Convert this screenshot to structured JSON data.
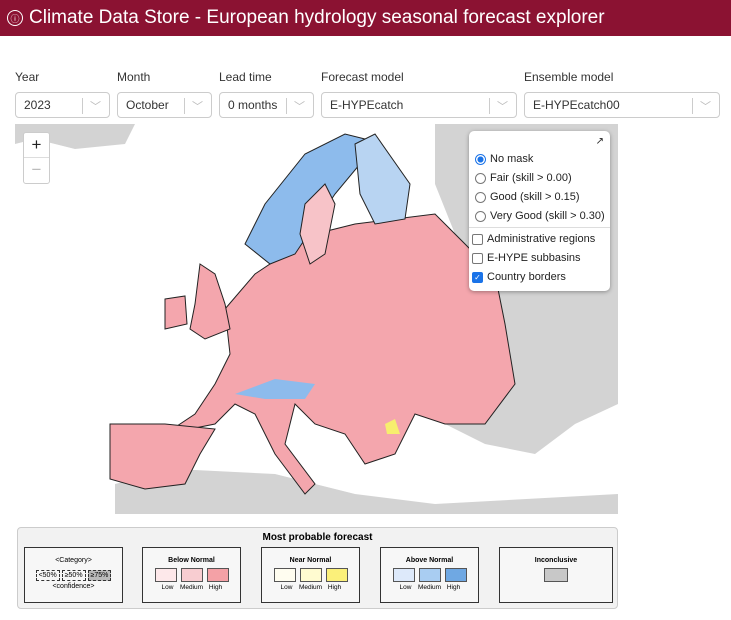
{
  "header": {
    "title": "Climate Data Store - European hydrology seasonal forecast explorer",
    "logo_icon": "cds-logo-icon"
  },
  "controls": [
    {
      "label": "Year",
      "value": "2023"
    },
    {
      "label": "Month",
      "value": "October"
    },
    {
      "label": "Lead time",
      "value": "0 months"
    },
    {
      "label": "Forecast model",
      "value": "E-HYPEcatch"
    },
    {
      "label": "Ensemble model",
      "value": "E-HYPEcatch00"
    }
  ],
  "map": {
    "zoom_in": "+",
    "zoom_out": "−",
    "layers": {
      "expand_icon": "↗",
      "masks": [
        {
          "label": "No mask",
          "selected": true
        },
        {
          "label": "Fair (skill > 0.00)",
          "selected": false
        },
        {
          "label": "Good (skill > 0.15)",
          "selected": false
        },
        {
          "label": "Very Good (skill > 0.30)",
          "selected": false
        }
      ],
      "overlays": [
        {
          "label": "Administrative regions",
          "checked": false
        },
        {
          "label": "E-HYPE subbasins",
          "checked": false
        },
        {
          "label": "Country borders",
          "checked": true
        }
      ]
    },
    "colors": {
      "land_outside": "#d3d3d3",
      "below_high": "#f4a3a8",
      "above": "#7fb3ea",
      "near_high": "#f7ee6e"
    }
  },
  "legend": {
    "title": "Most probable forecast",
    "key": {
      "category": "<Category>",
      "confidence": "<confidence>",
      "levels": [
        "<50%",
        "≥50%",
        "≥75%"
      ]
    },
    "groups": [
      {
        "name": "Below Normal",
        "colors": [
          "#fde8ea",
          "#f8cdd1",
          "#f4a1a6"
        ],
        "labels": [
          "Low",
          "Medium",
          "High"
        ]
      },
      {
        "name": "Near Normal",
        "colors": [
          "#fffdf0",
          "#fffbd0",
          "#fbf07a"
        ],
        "labels": [
          "Low",
          "Medium",
          "High"
        ]
      },
      {
        "name": "Above Normal",
        "colors": [
          "#dde9fa",
          "#a9cdf2",
          "#6fa8e3"
        ],
        "labels": [
          "Low",
          "Medium",
          "High"
        ]
      }
    ],
    "inconclusive": {
      "name": "Inconclusive",
      "color": "#c8c8c8"
    }
  }
}
